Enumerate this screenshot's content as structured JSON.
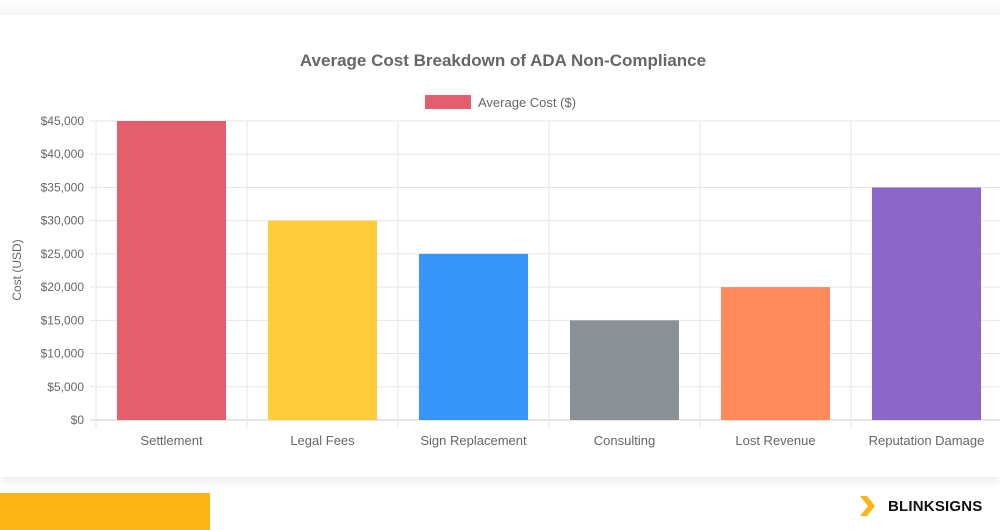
{
  "chart_data": {
    "type": "bar",
    "title": "Average Cost Breakdown of ADA Non-Compliance",
    "ylabel": "Cost (USD)",
    "xlabel": "",
    "categories": [
      "Settlement",
      "Legal Fees",
      "Sign Replacement",
      "Consulting",
      "Lost Revenue",
      "Reputation Damage"
    ],
    "series": [
      {
        "name": "Average Cost ($)",
        "values": [
          45000,
          30000,
          25000,
          15000,
          20000,
          35000
        ]
      }
    ],
    "colors": [
      "#E45F6E",
      "#FFCD3C",
      "#3595F8",
      "#8A9096",
      "#FF8A5C",
      "#8C66CB"
    ],
    "ylim": [
      0,
      45000
    ],
    "yticks": [
      0,
      5000,
      10000,
      15000,
      20000,
      25000,
      30000,
      35000,
      40000,
      45000
    ],
    "ytick_labels": [
      "$0",
      "$5,000",
      "$10,000",
      "$15,000",
      "$20,000",
      "$25,000",
      "$30,000",
      "$35,000",
      "$40,000",
      "$45,000"
    ],
    "grid": true,
    "legend_position": "top"
  },
  "footer": {
    "brand": "BLINKSIGNS",
    "accent": "#FDB515"
  }
}
